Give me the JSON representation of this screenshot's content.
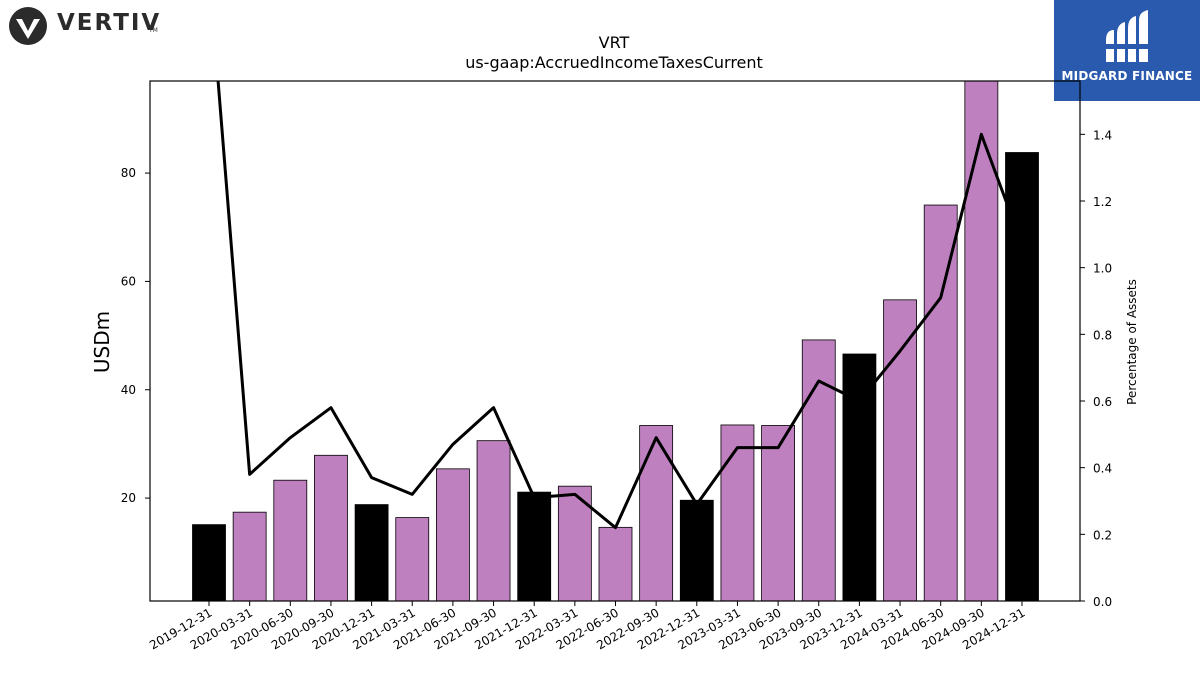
{
  "logos": {
    "left_brand": "VERTIV",
    "left_brand_tm": "TM",
    "right_brand": "MIDGARD FINANCE"
  },
  "colors": {
    "bar_regular": "#bf80bf",
    "bar_year_end": "#000000",
    "line": "#000000",
    "midgard_bg": "#2a5aae"
  },
  "chart_data": {
    "type": "bar",
    "title": "VRT",
    "subtitle": "us-gaap:AccruedIncomeTaxesCurrent",
    "ylabel": "USDm",
    "y2label": "Percentage of Assets",
    "ylim": [
      1,
      97
    ],
    "y2lim": [
      0.0,
      1.56
    ],
    "yticks": [
      20,
      40,
      60,
      80
    ],
    "y2ticks": [
      "0.0",
      "0.2",
      "0.4",
      "0.6",
      "0.8",
      "1.0",
      "1.2",
      "1.4"
    ],
    "categories": [
      "2019-12-31",
      "2020-03-31",
      "2020-06-30",
      "2020-09-30",
      "2020-12-31",
      "2021-03-31",
      "2021-06-30",
      "2021-09-30",
      "2021-12-31",
      "2022-03-31",
      "2022-06-30",
      "2022-09-30",
      "2022-12-31",
      "2023-03-31",
      "2023-06-30",
      "2023-09-30",
      "2023-12-31",
      "2024-03-31",
      "2024-06-30",
      "2024-09-30",
      "2024-12-31"
    ],
    "series": [
      {
        "type": "bar",
        "values": [
          15.1,
          17.4,
          23.3,
          27.9,
          18.8,
          16.4,
          25.4,
          30.6,
          21.1,
          22.2,
          14.6,
          33.4,
          19.6,
          33.5,
          33.4,
          49.2,
          46.6,
          56.6,
          74.1,
          97.0,
          83.8
        ],
        "year_end": [
          true,
          false,
          false,
          false,
          true,
          false,
          false,
          false,
          true,
          false,
          false,
          false,
          true,
          false,
          false,
          false,
          true,
          false,
          false,
          false,
          true
        ]
      },
      {
        "type": "line",
        "axis": "right",
        "values": [
          1.9,
          0.38,
          0.49,
          0.58,
          0.37,
          0.32,
          0.47,
          0.58,
          0.31,
          0.32,
          0.22,
          0.49,
          0.29,
          0.46,
          0.46,
          0.66,
          0.6,
          0.75,
          0.91,
          1.4,
          1.07
        ]
      }
    ],
    "grid": false
  }
}
